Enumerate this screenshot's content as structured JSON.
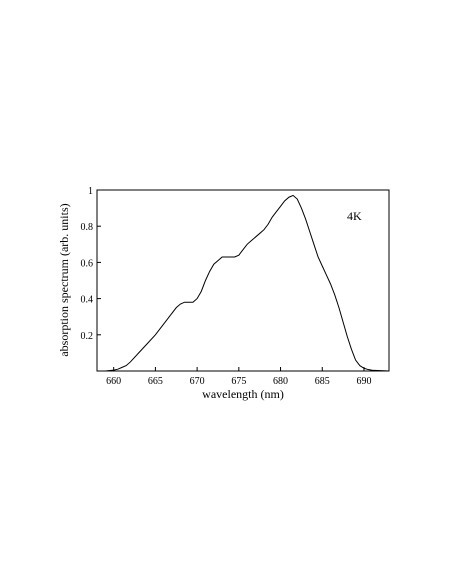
{
  "chart_data": {
    "type": "line",
    "title": "",
    "xlabel": "wavelength (nm)",
    "ylabel": "absorption spectrum (arb. units)",
    "annotation": "4K",
    "xlim": [
      658,
      693
    ],
    "ylim": [
      0,
      1
    ],
    "grid": false,
    "xticks": [
      660,
      665,
      670,
      675,
      680,
      685,
      690
    ],
    "xtick_labels": [
      "660",
      "665",
      "670",
      "675",
      "680",
      "685",
      "690"
    ],
    "yticks": [
      0.2,
      0.4,
      0.6,
      0.8,
      1
    ],
    "ytick_labels": [
      "0.2",
      "0.4",
      "0.6",
      "0.8",
      "1"
    ],
    "series": [
      {
        "x": [
          658,
          659,
          660,
          660.5,
          661,
          661.5,
          662,
          663,
          664,
          665,
          666,
          667,
          667.5,
          668,
          668.5,
          669,
          669.5,
          670,
          670.5,
          671,
          671.5,
          672,
          672.5,
          673,
          673.5,
          674,
          674.5,
          675,
          675.5,
          676,
          676.5,
          677,
          677.5,
          678,
          678.5,
          679,
          679.5,
          680,
          680.5,
          681,
          681.5,
          682,
          682.5,
          683,
          683.5,
          684,
          684.5,
          685,
          685.5,
          686,
          686.5,
          687,
          687.5,
          688,
          688.5,
          689,
          689.5,
          690,
          690.5,
          691,
          692,
          693
        ],
        "y": [
          0.0,
          0.0,
          0.005,
          0.01,
          0.02,
          0.03,
          0.05,
          0.1,
          0.15,
          0.2,
          0.26,
          0.32,
          0.35,
          0.37,
          0.38,
          0.38,
          0.38,
          0.4,
          0.44,
          0.5,
          0.55,
          0.59,
          0.61,
          0.63,
          0.63,
          0.63,
          0.63,
          0.64,
          0.67,
          0.7,
          0.72,
          0.74,
          0.76,
          0.78,
          0.81,
          0.85,
          0.88,
          0.91,
          0.94,
          0.96,
          0.97,
          0.95,
          0.9,
          0.84,
          0.77,
          0.7,
          0.63,
          0.58,
          0.53,
          0.48,
          0.42,
          0.35,
          0.27,
          0.19,
          0.12,
          0.06,
          0.03,
          0.015,
          0.008,
          0.004,
          0.002,
          0.0
        ]
      }
    ]
  }
}
